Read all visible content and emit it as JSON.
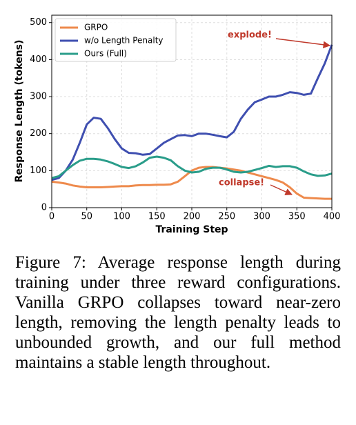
{
  "chart_data": {
    "type": "line",
    "xlabel": "Training Step",
    "ylabel": "Response Length (tokens)",
    "x": [
      0,
      10,
      20,
      30,
      40,
      50,
      60,
      70,
      80,
      90,
      100,
      110,
      120,
      130,
      140,
      150,
      160,
      170,
      180,
      190,
      200,
      210,
      220,
      230,
      240,
      250,
      260,
      270,
      280,
      290,
      300,
      310,
      320,
      330,
      340,
      350,
      360,
      370,
      380,
      390,
      400
    ],
    "series": [
      {
        "name": "GRPO",
        "color": "#ee8a4c",
        "values": [
          70,
          68,
          65,
          60,
          57,
          55,
          55,
          55,
          56,
          57,
          58,
          58,
          60,
          61,
          61,
          62,
          62,
          63,
          70,
          85,
          100,
          108,
          110,
          110,
          108,
          106,
          103,
          100,
          95,
          90,
          85,
          80,
          75,
          68,
          55,
          38,
          27,
          26,
          25,
          24,
          24
        ]
      },
      {
        "name": "w/o Length Penalty",
        "color": "#3f4fb0",
        "values": [
          75,
          80,
          100,
          130,
          175,
          225,
          243,
          240,
          215,
          185,
          160,
          148,
          147,
          143,
          145,
          160,
          175,
          185,
          195,
          196,
          193,
          200,
          200,
          197,
          193,
          190,
          205,
          240,
          265,
          285,
          292,
          300,
          300,
          305,
          312,
          310,
          305,
          308,
          350,
          390,
          440
        ]
      },
      {
        "name": "Ours (Full)",
        "color": "#2a9d8a",
        "values": [
          80,
          85,
          100,
          115,
          127,
          132,
          132,
          130,
          125,
          118,
          110,
          107,
          112,
          122,
          135,
          138,
          135,
          128,
          112,
          100,
          95,
          97,
          105,
          108,
          108,
          103,
          97,
          95,
          97,
          102,
          107,
          113,
          110,
          112,
          112,
          108,
          98,
          90,
          86,
          87,
          92
        ]
      }
    ],
    "annotations": [
      "explode!",
      "collapse!"
    ],
    "annotation_color": "#c0392b",
    "xlim": [
      0,
      400
    ],
    "xticks": [
      0,
      50,
      100,
      150,
      200,
      250,
      300,
      350,
      400
    ],
    "ylim": [
      0,
      520
    ],
    "yticks": [
      0,
      100,
      200,
      300,
      400,
      500
    ],
    "grid": true,
    "legend": "upper left"
  },
  "caption": "Figure 7: Average response length during training under three reward configurations. Vanilla GRPO collapses toward near-zero length, removing the length penalty leads to unbounded growth, and our full method maintains a stable length throughout."
}
